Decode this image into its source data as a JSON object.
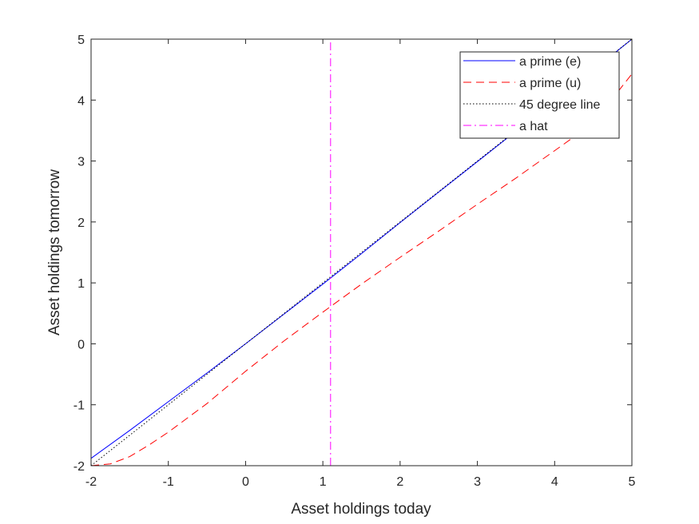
{
  "chart_data": {
    "type": "line",
    "title": "",
    "xlabel": "Asset holdings today",
    "ylabel": "Asset holdings tomorrow",
    "xlim": [
      -2,
      5
    ],
    "ylim": [
      -2,
      5
    ],
    "x_ticks": [
      -2,
      -1,
      0,
      1,
      2,
      3,
      4,
      5
    ],
    "y_ticks": [
      -2,
      -1,
      0,
      1,
      2,
      3,
      4,
      5
    ],
    "x_tick_labels": [
      "-2",
      "-1",
      "0",
      "1",
      "2",
      "3",
      "4",
      "5"
    ],
    "y_tick_labels": [
      "-2",
      "-1",
      "0",
      "1",
      "2",
      "3",
      "4",
      "5"
    ],
    "grid": false,
    "legend_position": "top-right",
    "series": [
      {
        "name": "a prime (e)",
        "color": "#0000ff",
        "style": "solid",
        "x": [
          -2,
          -1.5,
          -1,
          -0.5,
          0,
          0.5,
          1,
          1.5,
          2,
          2.5,
          3,
          3.5,
          4,
          4.5,
          5
        ],
        "y": [
          -1.88,
          -1.42,
          -0.95,
          -0.48,
          0.0,
          0.49,
          0.98,
          1.48,
          1.99,
          2.49,
          2.99,
          3.49,
          3.99,
          4.49,
          5.0
        ]
      },
      {
        "name": "a prime (u)",
        "color": "#ff0000",
        "style": "dashed",
        "x": [
          -2,
          -1.75,
          -1.5,
          -1.25,
          -1,
          -0.5,
          0,
          0.5,
          1,
          1.5,
          2,
          2.5,
          3,
          3.5,
          4,
          4.5,
          5
        ],
        "y": [
          -2.0,
          -1.97,
          -1.85,
          -1.66,
          -1.45,
          -0.98,
          -0.45,
          0.05,
          0.52,
          0.98,
          1.42,
          1.85,
          2.29,
          2.72,
          3.17,
          3.62,
          4.43
        ]
      },
      {
        "name": "45 degree line",
        "color": "#000000",
        "style": "dotted",
        "x": [
          -2,
          5
        ],
        "y": [
          -2,
          5
        ]
      },
      {
        "name": "a hat",
        "color": "#ff00ff",
        "style": "dashdot",
        "x": [
          1.1,
          1.1
        ],
        "y": [
          -2,
          5
        ]
      }
    ]
  }
}
